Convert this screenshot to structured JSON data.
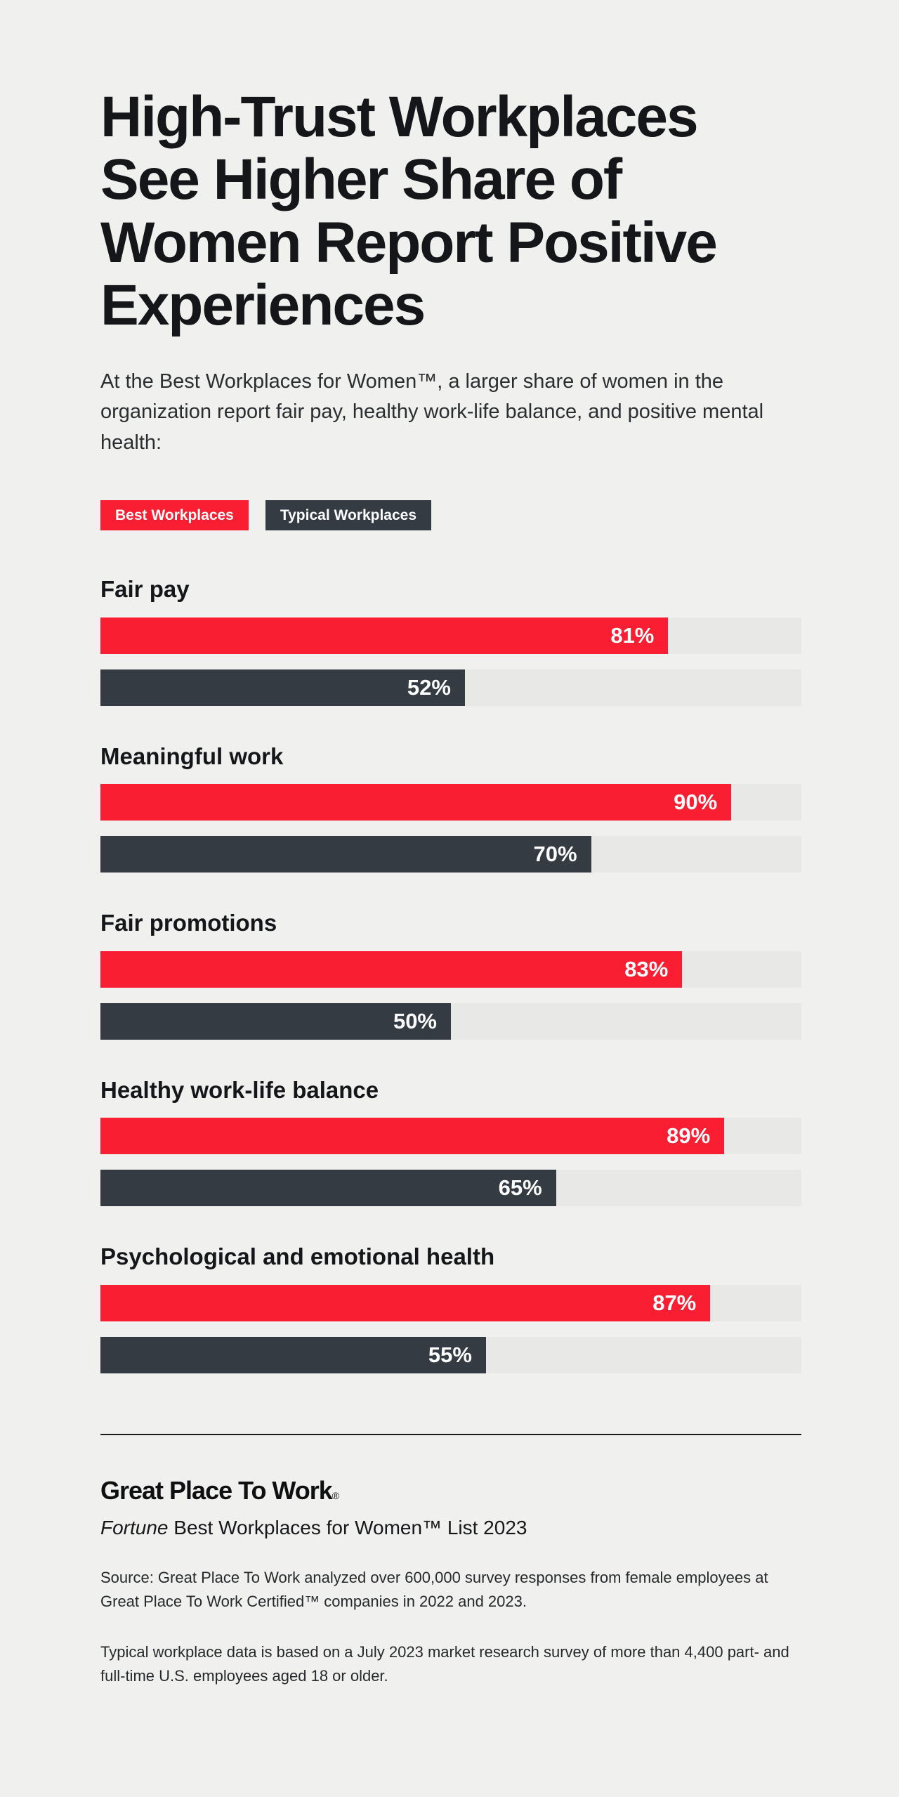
{
  "page": {
    "background": "#f0f0ee"
  },
  "header": {
    "title": "High-Trust Workplaces See Higher Share of Women Report Positive Experiences",
    "subtitle": "At the Best Workplaces for Women™, a larger share of women in the organization report fair pay, healthy work-life balance, and positive mental health:"
  },
  "legend": {
    "items": [
      {
        "label": "Best Workplaces",
        "color": "#fa1e32"
      },
      {
        "label": "Typical Workplaces",
        "color": "#343b43"
      }
    ]
  },
  "chart_data": {
    "type": "bar",
    "orientation": "horizontal",
    "categories": [
      "Fair pay",
      "Meaningful work",
      "Fair promotions",
      "Healthy work-life balance",
      "Psychological and emotional health"
    ],
    "series": [
      {
        "name": "Best Workplaces",
        "color": "#fa1e32",
        "values": [
          81,
          90,
          83,
          89,
          87
        ]
      },
      {
        "name": "Typical Workplaces",
        "color": "#343b43",
        "values": [
          52,
          70,
          50,
          65,
          55
        ]
      }
    ],
    "value_suffix": "%",
    "xlim": [
      0,
      100
    ],
    "grid": false,
    "legend_position": "top",
    "track_color": "#e8e9e6"
  },
  "footer": {
    "logo_text": "Great Place To Work",
    "logo_mark": "®",
    "list_title_italic": "Fortune",
    "list_title_rest": " Best Workplaces for Women™ List 2023",
    "source_1": "Source: Great Place To Work analyzed over 600,000 survey responses from female employees at Great Place To Work Certified™ companies in 2022 and 2023.",
    "source_2": "Typical workplace data is based on a July 2023 market research survey of more than 4,400 part- and full-time U.S. employees aged 18 or older."
  }
}
